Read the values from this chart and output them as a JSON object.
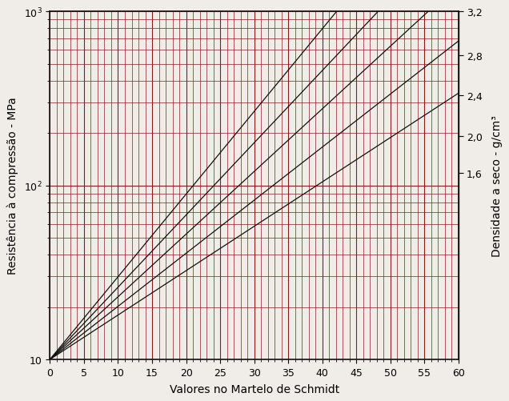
{
  "xlabel": "Valores no Martelo de Schmidt",
  "ylabel": "Resistência à compressão - MPa",
  "ylabel_right": "Densidade a seco - g/cm³",
  "xlim": [
    0,
    60
  ],
  "ylim_log": [
    10,
    1000
  ],
  "xticks": [
    0,
    5,
    10,
    15,
    20,
    25,
    30,
    35,
    40,
    45,
    50,
    55,
    60
  ],
  "density_labels": [
    "1,6",
    "2,0",
    "2,4",
    "2,8",
    "3,2"
  ],
  "line_color": "#111111",
  "grid_color": "#8b1a1a",
  "background_color": "#f0ede8",
  "border_color": "#111111",
  "intercept_log": 1.0,
  "slopes": [
    0.0255,
    0.0305,
    0.036,
    0.0415,
    0.0475
  ],
  "figsize": [
    6.36,
    5.02
  ],
  "dpi": 100
}
